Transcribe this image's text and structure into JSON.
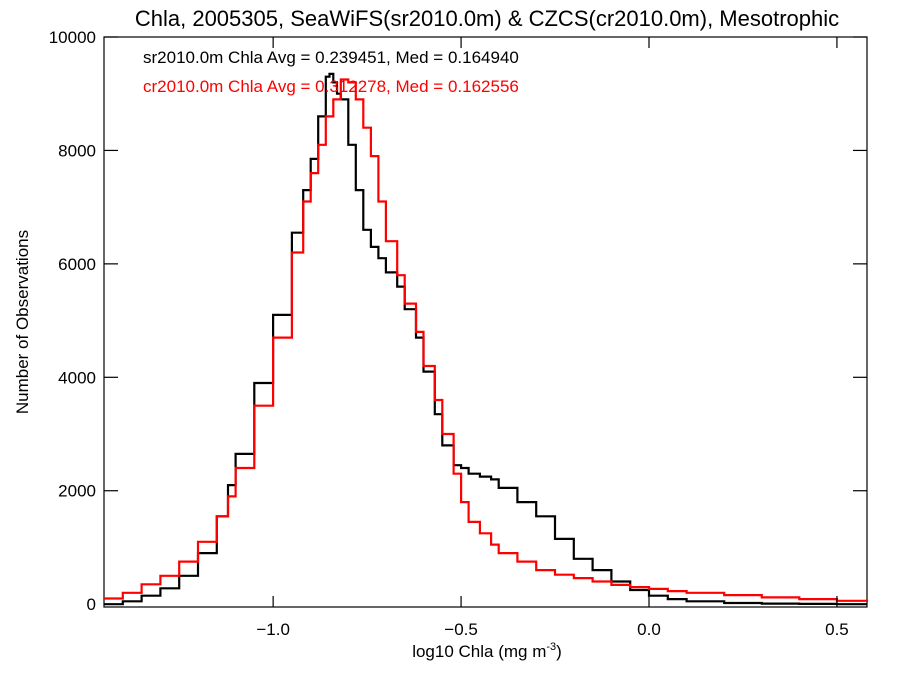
{
  "chart_data": {
    "type": "line",
    "title": "Chla, 2005305, SeaWiFS(sr2010.0m) & CZCS(cr2010.0m), Mesotrophic",
    "xlabel_main": "log10 Chla (mg m",
    "xlabel_sup": "-3",
    "xlabel_end": ")",
    "ylabel": "Number of Observations",
    "xlim": [
      -1.45,
      0.58
    ],
    "ylim": [
      -50,
      10000
    ],
    "x_ticks": [
      -1.0,
      -0.5,
      0.0,
      0.5
    ],
    "x_tick_labels": [
      "−1.0",
      "−0.5",
      "0.0",
      "0.5"
    ],
    "y_ticks": [
      0,
      2000,
      4000,
      6000,
      8000,
      10000
    ],
    "y_tick_labels": [
      "0",
      "2000",
      "4000",
      "6000",
      "8000",
      "10000"
    ],
    "grid": false,
    "annotations": [
      {
        "text": "sr2010.0m Chla Avg = 0.239451, Med = 0.164940",
        "color": "#000000"
      },
      {
        "text": "cr2010.0m Chla Avg = 0.312278, Med = 0.162556",
        "color": "#ff0000"
      }
    ],
    "series": [
      {
        "color": "#000000",
        "x": [
          -1.45,
          -1.4,
          -1.35,
          -1.3,
          -1.25,
          -1.2,
          -1.15,
          -1.12,
          -1.1,
          -1.05,
          -1.0,
          -0.95,
          -0.92,
          -0.9,
          -0.88,
          -0.86,
          -0.85,
          -0.84,
          -0.83,
          -0.82,
          -0.8,
          -0.78,
          -0.76,
          -0.74,
          -0.72,
          -0.7,
          -0.67,
          -0.65,
          -0.62,
          -0.6,
          -0.57,
          -0.55,
          -0.52,
          -0.5,
          -0.48,
          -0.45,
          -0.42,
          -0.4,
          -0.35,
          -0.3,
          -0.25,
          -0.2,
          -0.15,
          -0.1,
          -0.05,
          0.0,
          0.05,
          0.1,
          0.2,
          0.3,
          0.4,
          0.5,
          0.58
        ],
        "y": [
          0,
          50,
          150,
          280,
          500,
          900,
          1550,
          2100,
          2650,
          3900,
          5100,
          6550,
          7300,
          7850,
          8600,
          9300,
          9350,
          9200,
          9000,
          8900,
          8100,
          7300,
          6600,
          6300,
          6100,
          5850,
          5600,
          5200,
          4700,
          4100,
          3350,
          2800,
          2450,
          2400,
          2300,
          2250,
          2200,
          2050,
          1800,
          1550,
          1150,
          800,
          600,
          400,
          250,
          150,
          90,
          50,
          20,
          10,
          5,
          0,
          0
        ]
      },
      {
        "color": "#ff0000",
        "x": [
          -1.45,
          -1.4,
          -1.35,
          -1.3,
          -1.25,
          -1.2,
          -1.15,
          -1.12,
          -1.1,
          -1.05,
          -1.0,
          -0.95,
          -0.92,
          -0.9,
          -0.88,
          -0.86,
          -0.84,
          -0.82,
          -0.8,
          -0.78,
          -0.76,
          -0.74,
          -0.72,
          -0.7,
          -0.67,
          -0.65,
          -0.62,
          -0.6,
          -0.57,
          -0.55,
          -0.52,
          -0.5,
          -0.48,
          -0.45,
          -0.42,
          -0.4,
          -0.35,
          -0.3,
          -0.25,
          -0.2,
          -0.15,
          -0.1,
          -0.05,
          0.0,
          0.05,
          0.1,
          0.2,
          0.3,
          0.4,
          0.5,
          0.58
        ],
        "y": [
          100,
          200,
          350,
          500,
          750,
          1100,
          1550,
          1900,
          2400,
          3500,
          4700,
          6200,
          7100,
          7600,
          8100,
          8600,
          8900,
          9250,
          9200,
          8900,
          8400,
          7900,
          7100,
          6400,
          5800,
          5300,
          4800,
          4200,
          3600,
          3000,
          2300,
          1800,
          1450,
          1250,
          1050,
          900,
          750,
          600,
          520,
          460,
          400,
          340,
          300,
          270,
          230,
          200,
          160,
          120,
          90,
          60,
          40
        ]
      }
    ]
  }
}
